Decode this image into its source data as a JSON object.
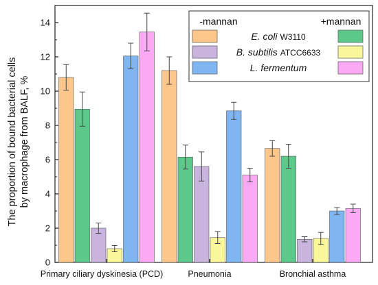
{
  "chart_data": {
    "type": "bar",
    "ylabel_line1": "The proportion of bound bacterial cells",
    "ylabel_line2": "by macrophage from BALF, %",
    "ylim": [
      0,
      15
    ],
    "yticks": [
      0,
      2,
      4,
      6,
      8,
      10,
      12,
      14
    ],
    "categories": [
      "Primary ciliary dyskinesia (PCD)",
      "Pneumonia",
      "Bronchial asthma"
    ],
    "series": [
      {
        "strain": "E. coli",
        "condition": "-mannan",
        "color": "#FDC68A",
        "values": [
          10.8,
          11.2,
          6.65
        ],
        "errors": [
          0.75,
          0.8,
          0.45
        ]
      },
      {
        "strain": "E. coli",
        "condition": "+mannan",
        "color": "#5CC98A",
        "values": [
          8.95,
          6.15,
          6.2
        ],
        "errors": [
          1.0,
          0.7,
          0.7
        ]
      },
      {
        "strain": "B. subtilis",
        "condition": "-mannan",
        "color": "#C9B4DE",
        "values": [
          2.0,
          5.6,
          1.35
        ],
        "errors": [
          0.3,
          0.85,
          0.15
        ]
      },
      {
        "strain": "B. subtilis",
        "condition": "+mannan",
        "color": "#FAF79A",
        "values": [
          0.8,
          1.45,
          1.4
        ],
        "errors": [
          0.18,
          0.35,
          0.35
        ]
      },
      {
        "strain": "L. fermentum",
        "condition": "-mannan",
        "color": "#7FB6F2",
        "values": [
          12.05,
          8.85,
          3.0
        ],
        "errors": [
          0.75,
          0.5,
          0.2
        ]
      },
      {
        "strain": "L. fermentum",
        "condition": "+mannan",
        "color": "#FBA8F5",
        "values": [
          13.45,
          5.1,
          3.15
        ],
        "errors": [
          1.1,
          0.4,
          0.25
        ]
      }
    ],
    "legend": {
      "header_minus": "-mannan",
      "header_plus": "+mannan",
      "rows": [
        {
          "name": "E. coli",
          "strain_id": "W3110",
          "color_minus": "#FDC68A",
          "color_plus": "#5CC98A"
        },
        {
          "name": "B. subtilis",
          "strain_id": "ATCC6633",
          "color_minus": "#C9B4DE",
          "color_plus": "#FAF79A"
        },
        {
          "name": "L. fermentum",
          "strain_id": "",
          "color_minus": "#7FB6F2",
          "color_plus": "#FBA8F5"
        }
      ],
      "placement": "top-right"
    },
    "grid": false
  }
}
